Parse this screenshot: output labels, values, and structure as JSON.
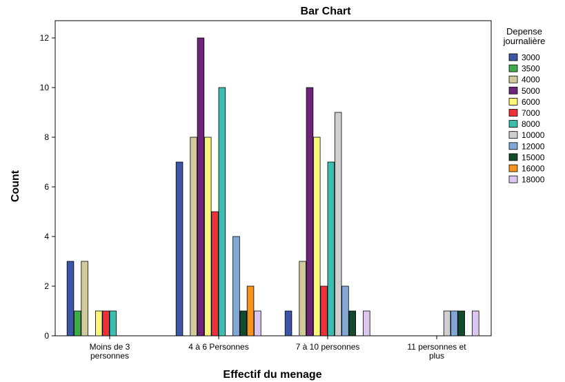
{
  "chart_data": {
    "type": "bar",
    "title": "Bar Chart",
    "xlabel": "Effectif du menage",
    "ylabel": "Count",
    "ylim": [
      0,
      12
    ],
    "yticks": [
      0,
      2,
      4,
      6,
      8,
      10,
      12
    ],
    "grid": false,
    "legend_position": "right",
    "legend_title": [
      "Depense",
      "journalière"
    ],
    "categories": [
      [
        "Moins de 3",
        "personnes"
      ],
      [
        "4 à 6 Personnes"
      ],
      [
        "7 à 10 personnes"
      ],
      [
        "11 personnes et",
        "plus"
      ]
    ],
    "series": [
      {
        "name": "3000",
        "color": "#3c55a4",
        "values": [
          3,
          7,
          1,
          null
        ]
      },
      {
        "name": "3500",
        "color": "#3faa4a",
        "values": [
          1,
          null,
          null,
          null
        ]
      },
      {
        "name": "4000",
        "color": "#cfc99b",
        "values": [
          3,
          8,
          3,
          null
        ]
      },
      {
        "name": "5000",
        "color": "#6c2579",
        "values": [
          null,
          12,
          10,
          null
        ]
      },
      {
        "name": "6000",
        "color": "#fbf67a",
        "values": [
          1,
          8,
          8,
          null
        ]
      },
      {
        "name": "7000",
        "color": "#ee3138",
        "values": [
          1,
          5,
          2,
          null
        ]
      },
      {
        "name": "8000",
        "color": "#3bbdb0",
        "values": [
          1,
          10,
          7,
          null
        ]
      },
      {
        "name": "10000",
        "color": "#cfcfcf",
        "values": [
          null,
          null,
          9,
          1
        ]
      },
      {
        "name": "12000",
        "color": "#82a7d4",
        "values": [
          null,
          4,
          2,
          1
        ]
      },
      {
        "name": "15000",
        "color": "#134a2c",
        "values": [
          null,
          1,
          1,
          1
        ]
      },
      {
        "name": "16000",
        "color": "#f7941d",
        "values": [
          null,
          2,
          null,
          null
        ]
      },
      {
        "name": "18000",
        "color": "#dcc5ee",
        "values": [
          null,
          1,
          1,
          1
        ]
      }
    ]
  }
}
